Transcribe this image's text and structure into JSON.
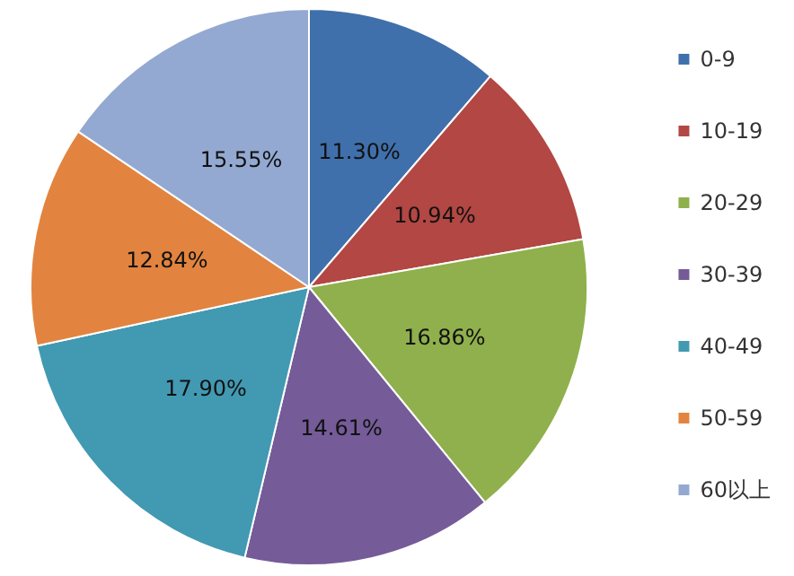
{
  "chart_data": {
    "type": "pie",
    "categories": [
      "0-9",
      "10-19",
      "20-29",
      "30-39",
      "40-49",
      "50-59",
      "60以上"
    ],
    "values": [
      11.3,
      10.94,
      16.86,
      14.61,
      17.9,
      12.84,
      15.55
    ],
    "value_labels": [
      "11.30%",
      "10.94%",
      "16.86%",
      "14.61%",
      "17.90%",
      "12.84%",
      "15.55%"
    ],
    "colors": [
      "#4070ab",
      "#b24743",
      "#8fb04c",
      "#755b98",
      "#4299b2",
      "#e2843f",
      "#93a9d1"
    ],
    "legend": "right"
  }
}
